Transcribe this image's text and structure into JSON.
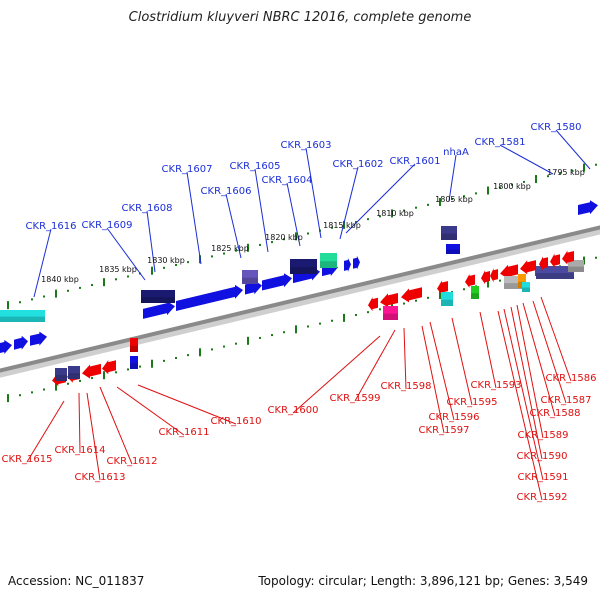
{
  "title": "Clostridium kluyveri NBRC 12016, complete genome",
  "footer": {
    "accession": "Accession: NC_011837",
    "summary": "Topology: circular; Length: 3,896,121 bp; Genes: 3,549"
  },
  "colors": {
    "forward_label": "#1c2fd6",
    "reverse_label": "#e01010",
    "backbone": "#8a8a8a",
    "tick": "#1a7a1a"
  },
  "scale_labels": [
    "1840 kbp",
    "1835 kbp",
    "1830 kbp",
    "1825 kbp",
    "1820 kbp",
    "1815 kbp",
    "1810 kbp",
    "1805 kbp",
    "1800 kbp",
    "1795 kbp"
  ],
  "forward_genes": [
    "CKR_1616",
    "CKR_1609",
    "CKR_1608",
    "CKR_1607",
    "CKR_1606",
    "CKR_1605",
    "CKR_1604",
    "CKR_1603",
    "CKR_1602",
    "CKR_1601",
    "nhaA",
    "CKR_1581",
    "CKR_1580"
  ],
  "reverse_genes": [
    "CKR_1615",
    "CKR_1614",
    "CKR_1613",
    "CKR_1612",
    "CKR_1611",
    "CKR_1610",
    "CKR_1600",
    "CKR_1599",
    "CKR_1598",
    "CKR_1597",
    "CKR_1596",
    "CKR_1595",
    "CKR_1593",
    "CKR_1592",
    "CKR_1591",
    "CKR_1590",
    "CKR_1589",
    "CKR_1588",
    "CKR_1587",
    "CKR_1586"
  ]
}
